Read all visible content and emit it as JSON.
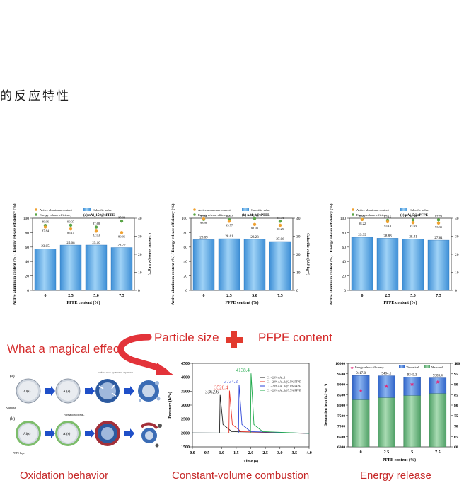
{
  "heading": "的反应特性",
  "legend_labels": {
    "active": "Active aluminum content",
    "energy": "Energy release efficiency",
    "calorific": "Calorific value"
  },
  "charts_top": [
    {
      "title": "(a) nAl_150@zPFPE",
      "ylabel_left": "Active aluminum content (%) / Energy release efficiency (%)",
      "ylabel_right": "Calorific value (MJ·kg⁻¹)",
      "xlabel": "PFPE  content  (%)",
      "categories": [
        "0",
        "2.5",
        "5.0",
        "7.5"
      ],
      "calorific": [
        "23.05",
        "25.08",
        "25.10",
        "23.72"
      ],
      "energy": [
        "89.96",
        "90.37",
        "87.68",
        "95.86"
      ],
      "active": [
        "87.84",
        "85.11",
        "82.03",
        "80.06"
      ]
    },
    {
      "title": "(b) nAl_1@zPFPE",
      "ylabel_left": "Active aluminum content (%) / Energy release efficiency (%)",
      "ylabel_right": "Calorific value (MJ·kg⁻¹)",
      "xlabel": "PFPE  content  (%)",
      "categories": [
        "0",
        "2.5",
        "5.0",
        "7.5"
      ],
      "calorific": [
        "28.09",
        "28.61",
        "28.28",
        "27.06"
      ],
      "energy": [
        "98.28",
        "98.02",
        "99.59",
        "95.74"
      ],
      "active": [
        "98.98",
        "95.77",
        "91.40",
        "90.25"
      ]
    },
    {
      "title": "(c) μAl_5@zPFPE",
      "ylabel_left": "Active aluminum content (%) / Energy release efficiency (%)",
      "ylabel_right": "Calorific value (MJ·kg⁻¹)",
      "xlabel": "PFPE  content  (%)",
      "categories": [
        "0",
        "2.5",
        "5.0",
        "7.5"
      ],
      "calorific": [
        "29.39",
        "28.88",
        "28.41",
        "27.81"
      ],
      "energy": [
        "98.37",
        "97.16",
        "97.53",
        "97.73"
      ],
      "active": [
        "98.22",
        "95.13",
        "93.93",
        "93.35"
      ]
    }
  ],
  "banner": {
    "magic": "What a magical effect",
    "particle": "Particle size",
    "pfpe": "PFPE content"
  },
  "oxidation": {
    "caption": "Oxidation behavior",
    "label_a": "(a)",
    "label_b": "(b)",
    "core": "Al(s)",
    "alumina": "Alumina",
    "pfpe_layer": "PFPE layer",
    "surface_crack": "Surface crack by thermal expansion",
    "alf3": "Formation of AlF₃",
    "o2": "O₂"
  },
  "pressure": {
    "caption": "Constant-volume combustion",
    "ylabel": "Pressure (kPa)",
    "xlabel": "Time (s)",
    "xticks": [
      "0.0",
      "0.5",
      "1.0",
      "1.5",
      "2.0",
      "2.5",
      "3.0",
      "3.5",
      "4.0"
    ],
    "yticks": [
      "1500",
      "2000",
      "2500",
      "3000",
      "3500",
      "4000",
      "4500"
    ],
    "peaks": [
      "3362.6",
      "3520.4",
      "3734.2",
      "4138.4"
    ],
    "legend": [
      "C1 - 20% nAl_1",
      "C1 - 20% nAl_1@2.5% PFPE",
      "C1 - 20% nAl_1@5.0% PFPE",
      "C1 - 20% nAl_1@7.5% PFPE"
    ],
    "colors": [
      "#222222",
      "#e8342a",
      "#2e46d8",
      "#1ea84a"
    ]
  },
  "energy": {
    "caption": "Energy release",
    "ylabel": "Detonation heat (kJ·kg⁻¹)",
    "xlabel": "PFPE content (%)",
    "categories": [
      "0",
      "2.5",
      "5",
      "7.5"
    ],
    "yticks": [
      "6000",
      "6500",
      "7000",
      "7500",
      "8000",
      "8500",
      "9000",
      "9500",
      "10000"
    ],
    "rticks": [
      "60",
      "65",
      "70",
      "75",
      "80",
      "85",
      "90",
      "95",
      "100"
    ],
    "theoretical": [
      "9417.8",
      "9404.1",
      "9345.3",
      "9303.4"
    ],
    "legend": [
      "Energy release efficiency",
      "Theoretical",
      "Measured"
    ]
  },
  "chart_data": [
    {
      "type": "bar",
      "title": "(a) nAl_150@zPFPE",
      "categories": [
        "0",
        "2.5",
        "5.0",
        "7.5"
      ],
      "series": [
        {
          "name": "Calorific value",
          "values": [
            23.05,
            25.08,
            25.1,
            23.72
          ]
        },
        {
          "name": "Energy release efficiency",
          "values": [
            89.96,
            90.37,
            87.68,
            95.86
          ]
        },
        {
          "name": "Active aluminum content",
          "values": [
            87.84,
            85.11,
            82.03,
            80.06
          ]
        }
      ],
      "xlabel": "PFPE content (%)",
      "ylim": [
        0,
        100
      ],
      "y2lim": [
        0,
        40
      ]
    },
    {
      "type": "bar",
      "title": "(b) nAl_1@zPFPE",
      "categories": [
        "0",
        "2.5",
        "5.0",
        "7.5"
      ],
      "series": [
        {
          "name": "Calorific value",
          "values": [
            28.09,
            28.61,
            28.28,
            27.06
          ]
        },
        {
          "name": "Energy release efficiency",
          "values": [
            98.28,
            98.02,
            99.59,
            95.74
          ]
        },
        {
          "name": "Active aluminum content",
          "values": [
            98.98,
            95.77,
            91.4,
            90.25
          ]
        }
      ],
      "xlabel": "PFPE content (%)",
      "ylim": [
        0,
        100
      ],
      "y2lim": [
        0,
        40
      ]
    },
    {
      "type": "bar",
      "title": "(c) μAl_5@zPFPE",
      "categories": [
        "0",
        "2.5",
        "5.0",
        "7.5"
      ],
      "series": [
        {
          "name": "Calorific value",
          "values": [
            29.39,
            28.88,
            28.41,
            27.81
          ]
        },
        {
          "name": "Energy release efficiency",
          "values": [
            98.37,
            97.16,
            97.53,
            97.73
          ]
        },
        {
          "name": "Active aluminum content",
          "values": [
            98.22,
            95.13,
            93.93,
            93.35
          ]
        }
      ],
      "xlabel": "PFPE content (%)",
      "ylim": [
        0,
        100
      ],
      "y2lim": [
        0,
        40
      ]
    },
    {
      "type": "line",
      "title": "",
      "x_peak": [
        0.95,
        1.27,
        1.6,
        2.01
      ],
      "series": [
        {
          "name": "C1 - 20% nAl_1",
          "peak": 3362.6
        },
        {
          "name": "C1 - 20% nAl_1@2.5% PFPE",
          "peak": 3520.4
        },
        {
          "name": "C1 - 20% nAl_1@5.0% PFPE",
          "peak": 3734.2
        },
        {
          "name": "C1 - 20% nAl_1@7.5% PFPE",
          "peak": 4138.4
        }
      ],
      "baseline": 2000,
      "xlim": [
        0,
        4
      ],
      "ylim": [
        1500,
        4500
      ]
    },
    {
      "type": "bar",
      "title": "",
      "categories": [
        "0",
        "2.5",
        "5",
        "7.5"
      ],
      "series": [
        {
          "name": "Theoretical",
          "values": [
            9417.8,
            9404.1,
            9345.3,
            9303.4
          ]
        },
        {
          "name": "Measured",
          "values": [
            8250,
            8350,
            8450,
            8550
          ]
        },
        {
          "name": "Energy release efficiency",
          "values": [
            87,
            89,
            90,
            91
          ]
        }
      ],
      "ylim": [
        6000,
        10000
      ],
      "y2lim": [
        60,
        100
      ]
    }
  ]
}
